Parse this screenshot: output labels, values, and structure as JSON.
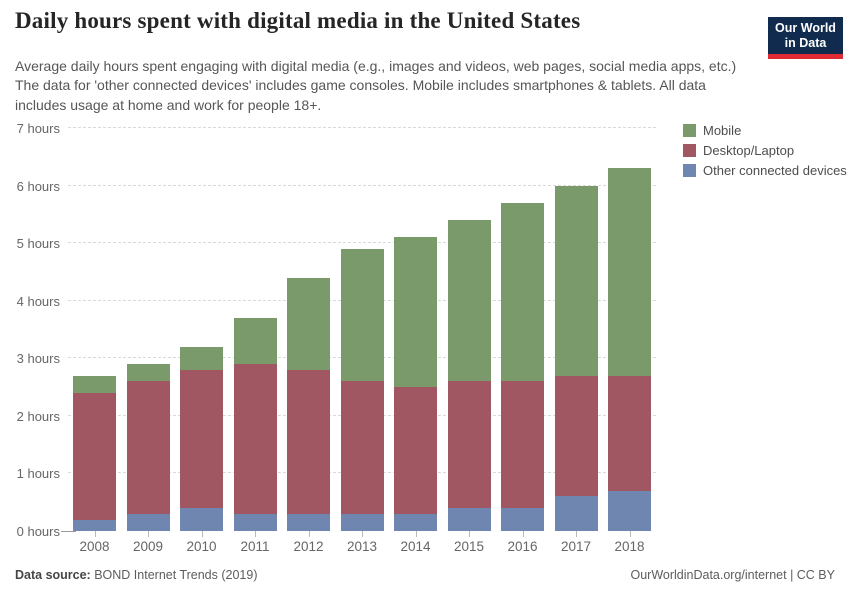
{
  "header": {
    "logo_line1": "Our World",
    "logo_line2": "in Data"
  },
  "chart_data": {
    "type": "bar",
    "stacked": true,
    "title": "Daily hours spent with digital media in the United States",
    "subtitle": "Average daily hours spent engaging with digital media (e.g., images and videos, web pages, social media apps, etc.) The data for 'other connected devices' includes game consoles. Mobile includes smartphones & tablets. All data includes usage at home and work for people 18+.",
    "categories": [
      "2008",
      "2009",
      "2010",
      "2011",
      "2012",
      "2013",
      "2014",
      "2015",
      "2016",
      "2017",
      "2018"
    ],
    "series": [
      {
        "name": "Other connected devices",
        "color": "#6f87b0",
        "values": [
          0.2,
          0.3,
          0.4,
          0.3,
          0.3,
          0.3,
          0.3,
          0.4,
          0.4,
          0.6,
          0.7
        ]
      },
      {
        "name": "Desktop/Laptop",
        "color": "#a05762",
        "values": [
          2.2,
          2.3,
          2.4,
          2.6,
          2.5,
          2.3,
          2.2,
          2.2,
          2.2,
          2.1,
          2.0
        ]
      },
      {
        "name": "Mobile",
        "color": "#7a9a6b",
        "values": [
          0.3,
          0.3,
          0.4,
          0.8,
          1.6,
          2.3,
          2.6,
          2.8,
          3.1,
          3.3,
          3.6
        ]
      }
    ],
    "totals": [
      2.7,
      2.9,
      3.2,
      3.7,
      4.4,
      4.9,
      5.1,
      5.4,
      5.7,
      6.0,
      6.3
    ],
    "ylim": [
      0,
      7
    ],
    "ytick_labels": [
      "0 hours",
      "1 hours",
      "2 hours",
      "3 hours",
      "4 hours",
      "5 hours",
      "6 hours",
      "7 hours"
    ],
    "xlabel": "",
    "ylabel": "",
    "grid": "horizontal-dashed",
    "legend_position": "top-right",
    "legend": [
      "Mobile",
      "Desktop/Laptop",
      "Other connected devices"
    ]
  },
  "footer": {
    "source_label": "Data source:",
    "source_value": "BOND Internet Trends (2019)",
    "credit": "OurWorldinData.org/internet | CC BY"
  }
}
